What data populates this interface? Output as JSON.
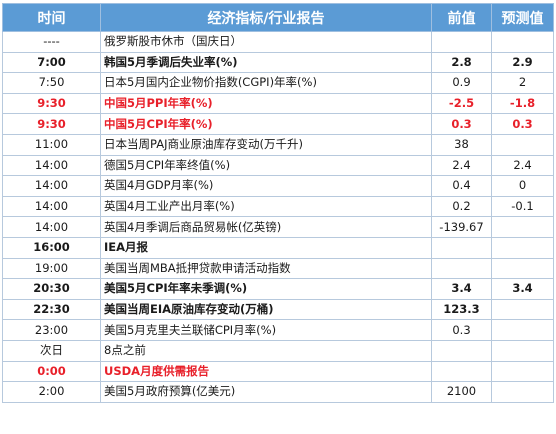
{
  "header": {
    "time": "时间",
    "indicator": "经济指标/行业报告",
    "previous": "前值",
    "forecast": "预测值"
  },
  "rows": [
    {
      "time": "----",
      "indicator": "俄罗斯股市休市（国庆日）",
      "previous": "",
      "forecast": "",
      "style": "normal"
    },
    {
      "time": "7:00",
      "indicator": "韩国5月季调后失业率(%)",
      "previous": "2.8",
      "forecast": "2.9",
      "style": "bold"
    },
    {
      "time": "7:50",
      "indicator": "日本5月国内企业物价指数(CGPI)年率(%)",
      "previous": "0.9",
      "forecast": "2",
      "style": "normal"
    },
    {
      "time": "9:30",
      "indicator": "中国5月PPI年率(%)",
      "previous": "-2.5",
      "forecast": "-1.8",
      "style": "red"
    },
    {
      "time": "9:30",
      "indicator": "中国5月CPI年率(%)",
      "previous": "0.3",
      "forecast": "0.3",
      "style": "red"
    },
    {
      "time": "11:00",
      "indicator": "日本当周PAJ商业原油库存变动(万千升)",
      "previous": "38",
      "forecast": "",
      "style": "normal"
    },
    {
      "time": "14:00",
      "indicator": "德国5月CPI年率终值(%)",
      "previous": "2.4",
      "forecast": "2.4",
      "style": "normal"
    },
    {
      "time": "14:00",
      "indicator": "英国4月GDP月率(%)",
      "previous": "0.4",
      "forecast": "0",
      "style": "normal"
    },
    {
      "time": "14:00",
      "indicator": "英国4月工业产出月率(%)",
      "previous": "0.2",
      "forecast": "-0.1",
      "style": "normal"
    },
    {
      "time": "14:00",
      "indicator": "英国4月季调后商品贸易帐(亿英镑)",
      "previous": "-139.67",
      "forecast": "",
      "style": "normal"
    },
    {
      "time": "16:00",
      "indicator": "IEA月报",
      "previous": "",
      "forecast": "",
      "style": "bold"
    },
    {
      "time": "19:00",
      "indicator": "美国当周MBA抵押贷款申请活动指数",
      "previous": "",
      "forecast": "",
      "style": "normal"
    },
    {
      "time": "20:30",
      "indicator": "美国5月CPI年率未季调(%)",
      "previous": "3.4",
      "forecast": "3.4",
      "style": "bold"
    },
    {
      "time": "22:30",
      "indicator": "美国当周EIA原油库存变动(万桶)",
      "previous": "123.3",
      "forecast": "",
      "style": "bold"
    },
    {
      "time": "23:00",
      "indicator": "美国5月克里夫兰联储CPI月率(%)",
      "previous": "0.3",
      "forecast": "",
      "style": "normal"
    },
    {
      "time": "次日",
      "indicator": "8点之前",
      "previous": "",
      "forecast": "",
      "style": "normal"
    },
    {
      "time": "0:00",
      "indicator": "USDA月度供需报告",
      "previous": "",
      "forecast": "",
      "style": "red"
    },
    {
      "time": "2:00",
      "indicator": "美国5月政府预算(亿美元)",
      "previous": "2100",
      "forecast": "",
      "style": "normal"
    }
  ]
}
